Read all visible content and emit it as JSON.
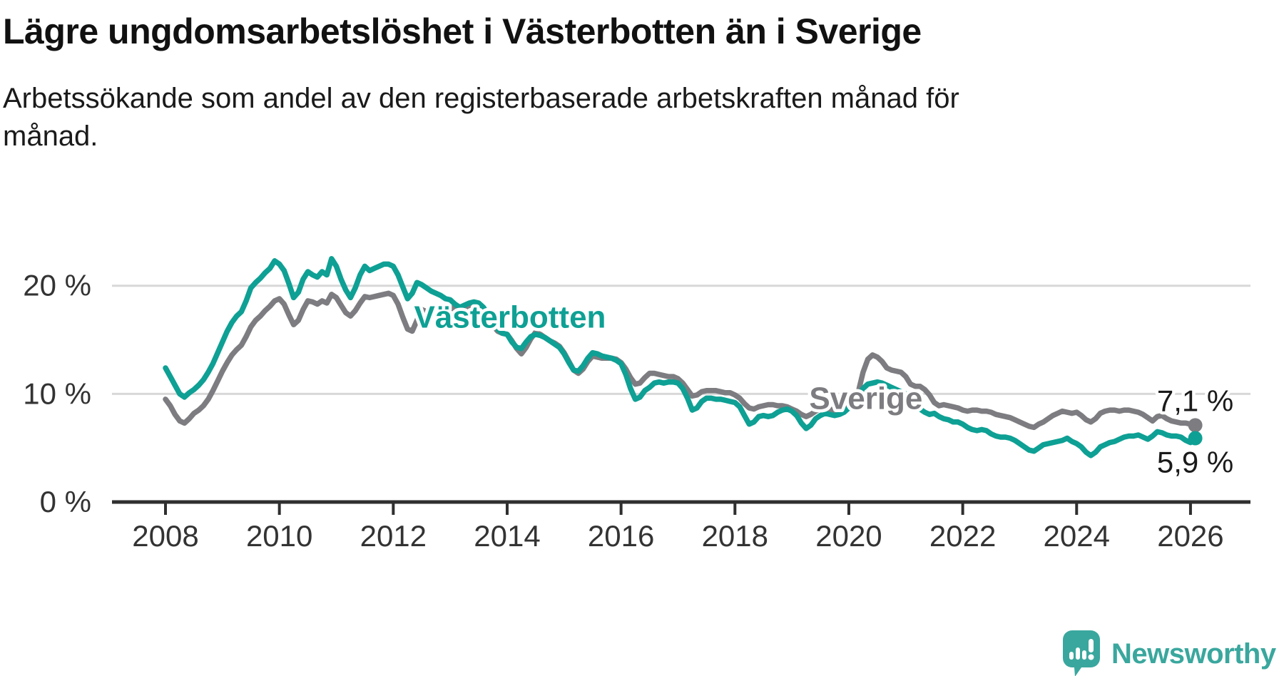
{
  "header": {
    "title": "Lägre ungdomsarbetslöshet i Västerbotten än i Sverige",
    "subtitle": "Arbetssökande som andel av den registerbaserade arbetskraften månad för månad."
  },
  "footer": {
    "brand": "Newsworthy",
    "logo_icon": "speech-bubble-bar-chart-icon",
    "brand_color": "#3aa79e"
  },
  "colors": {
    "vasterbotten": "#0ea094",
    "sverige": "#7d7d81",
    "grid": "#d8d8d8",
    "axis": "#2f2f2f",
    "tick_text": "#333333",
    "end_label_text": "#1a1a1a"
  },
  "chart_data": {
    "type": "line",
    "unit": "%",
    "grid": "horizontal",
    "x_domain": [
      2008,
      2026.3
    ],
    "ylim": [
      0,
      23
    ],
    "y_ticks": [
      {
        "value": 0,
        "label": "0 %"
      },
      {
        "value": 10,
        "label": "10 %"
      },
      {
        "value": 20,
        "label": "20 %"
      }
    ],
    "x_ticks": [
      {
        "value": 2008,
        "label": "2008"
      },
      {
        "value": 2010,
        "label": "2010"
      },
      {
        "value": 2012,
        "label": "2012"
      },
      {
        "value": 2014,
        "label": "2014"
      },
      {
        "value": 2016,
        "label": "2016"
      },
      {
        "value": 2018,
        "label": "2018"
      },
      {
        "value": 2020,
        "label": "2020"
      },
      {
        "value": 2022,
        "label": "2022"
      },
      {
        "value": 2024,
        "label": "2024"
      },
      {
        "value": 2026,
        "label": "2026"
      }
    ],
    "series": [
      {
        "name": "Sverige",
        "color": "#7d7d81",
        "start_year": 2008,
        "step_months": 1,
        "end_label": "7,1 %",
        "end_label_side": "above",
        "label_pos": {
          "x": 2020.3,
          "y": 9.6
        },
        "values": [
          9.5,
          8.9,
          8.1,
          7.5,
          7.3,
          7.7,
          8.2,
          8.5,
          8.9,
          9.5,
          10.3,
          11.2,
          12.1,
          12.9,
          13.6,
          14.1,
          14.5,
          15.3,
          16.2,
          16.8,
          17.2,
          17.7,
          18.1,
          18.6,
          18.8,
          18.3,
          17.3,
          16.4,
          16.8,
          17.8,
          18.6,
          18.5,
          18.3,
          18.6,
          18.4,
          19.2,
          18.9,
          18.2,
          17.5,
          17.2,
          17.7,
          18.4,
          19.0,
          18.9,
          19.0,
          19.1,
          19.2,
          19.3,
          19.1,
          18.3,
          17.1,
          16.0,
          15.8,
          16.8,
          17.8,
          17.6,
          17.5,
          17.6,
          17.7,
          17.9,
          18.0,
          17.8,
          17.6,
          17.8,
          18.0,
          18.1,
          18.1,
          17.7,
          17.0,
          16.3,
          15.8,
          15.6,
          15.5,
          14.9,
          14.2,
          13.7,
          14.3,
          15.1,
          15.7,
          15.5,
          15.2,
          14.9,
          14.7,
          14.4,
          13.8,
          13.0,
          12.2,
          11.9,
          12.3,
          13.0,
          13.5,
          13.4,
          13.3,
          13.3,
          13.3,
          13.2,
          12.9,
          12.3,
          11.5,
          10.9,
          11.0,
          11.5,
          11.9,
          11.9,
          11.8,
          11.7,
          11.6,
          11.6,
          11.4,
          11.0,
          10.4,
          9.8,
          9.9,
          10.2,
          10.3,
          10.3,
          10.3,
          10.2,
          10.1,
          10.1,
          9.9,
          9.6,
          9.1,
          8.7,
          8.6,
          8.8,
          8.9,
          9.0,
          9.0,
          8.9,
          8.9,
          8.8,
          8.6,
          8.4,
          8.1,
          7.9,
          8.1,
          8.4,
          8.6,
          8.6,
          8.6,
          8.5,
          8.6,
          8.8,
          9.0,
          9.3,
          10.2,
          12.0,
          13.2,
          13.6,
          13.4,
          13.0,
          12.4,
          12.2,
          12.1,
          12.0,
          11.6,
          10.9,
          10.7,
          10.7,
          10.4,
          9.9,
          9.2,
          8.9,
          9.0,
          8.9,
          8.8,
          8.7,
          8.5,
          8.4,
          8.5,
          8.5,
          8.4,
          8.4,
          8.3,
          8.1,
          8.0,
          7.9,
          7.8,
          7.6,
          7.4,
          7.2,
          7.0,
          6.9,
          7.2,
          7.4,
          7.7,
          8.0,
          8.2,
          8.4,
          8.3,
          8.2,
          8.3,
          8.0,
          7.6,
          7.4,
          7.7,
          8.2,
          8.4,
          8.5,
          8.5,
          8.4,
          8.5,
          8.5,
          8.4,
          8.3,
          8.1,
          7.8,
          7.5,
          7.9,
          8.0,
          7.7,
          7.5,
          7.4,
          7.3,
          7.3,
          7.2,
          7.1
        ]
      },
      {
        "name": "Västerbotten",
        "color": "#0ea094",
        "start_year": 2008,
        "step_months": 1,
        "end_label": "5,9 %",
        "end_label_side": "below",
        "label_pos": {
          "x": 2014.05,
          "y": 17.1
        },
        "values": [
          12.4,
          11.6,
          10.8,
          10.0,
          9.7,
          10.1,
          10.4,
          10.8,
          11.3,
          12.0,
          12.8,
          13.8,
          14.8,
          15.8,
          16.6,
          17.2,
          17.6,
          18.6,
          19.8,
          20.3,
          20.7,
          21.2,
          21.6,
          22.3,
          22.0,
          21.4,
          20.2,
          18.9,
          19.4,
          20.6,
          21.3,
          21.0,
          20.8,
          21.3,
          21.0,
          22.5,
          21.8,
          20.6,
          19.6,
          18.9,
          19.8,
          21.0,
          21.8,
          21.4,
          21.6,
          21.8,
          22.0,
          22.0,
          21.8,
          21.0,
          19.9,
          18.8,
          19.3,
          20.3,
          20.1,
          19.8,
          19.5,
          19.3,
          19.1,
          18.8,
          18.7,
          18.3,
          18.0,
          18.2,
          18.4,
          18.5,
          18.4,
          18.0,
          17.3,
          16.6,
          16.0,
          15.6,
          15.5,
          14.8,
          14.3,
          14.2,
          14.8,
          15.3,
          15.5,
          15.4,
          15.2,
          14.9,
          14.6,
          14.3,
          13.7,
          12.9,
          12.2,
          12.1,
          12.6,
          13.3,
          13.8,
          13.7,
          13.5,
          13.4,
          13.3,
          13.1,
          12.8,
          11.8,
          10.5,
          9.5,
          9.7,
          10.3,
          10.6,
          11.0,
          11.1,
          11.0,
          11.1,
          11.1,
          11.0,
          10.5,
          9.6,
          8.5,
          8.7,
          9.3,
          9.6,
          9.6,
          9.5,
          9.5,
          9.4,
          9.3,
          9.2,
          8.8,
          8.0,
          7.2,
          7.4,
          7.9,
          8.0,
          7.9,
          8.0,
          8.3,
          8.5,
          8.6,
          8.4,
          8.0,
          7.3,
          6.8,
          7.1,
          7.7,
          8.0,
          8.2,
          8.1,
          8.0,
          8.1,
          8.3,
          8.7,
          9.2,
          9.8,
          10.5,
          10.9,
          11.0,
          11.1,
          11.0,
          10.8,
          10.6,
          10.4,
          10.2,
          10.0,
          9.4,
          8.8,
          8.6,
          8.3,
          8.1,
          8.2,
          7.9,
          7.7,
          7.6,
          7.4,
          7.4,
          7.2,
          6.9,
          6.7,
          6.6,
          6.7,
          6.6,
          6.3,
          6.1,
          6.0,
          6.0,
          5.9,
          5.7,
          5.4,
          5.1,
          4.8,
          4.7,
          5.0,
          5.3,
          5.4,
          5.5,
          5.6,
          5.7,
          5.9,
          5.6,
          5.4,
          5.1,
          4.6,
          4.3,
          4.6,
          5.1,
          5.3,
          5.5,
          5.6,
          5.8,
          6.0,
          6.1,
          6.1,
          6.2,
          6.0,
          5.8,
          6.1,
          6.5,
          6.4,
          6.2,
          6.1,
          6.1,
          6.0,
          5.7,
          5.5,
          5.9
        ]
      }
    ]
  }
}
